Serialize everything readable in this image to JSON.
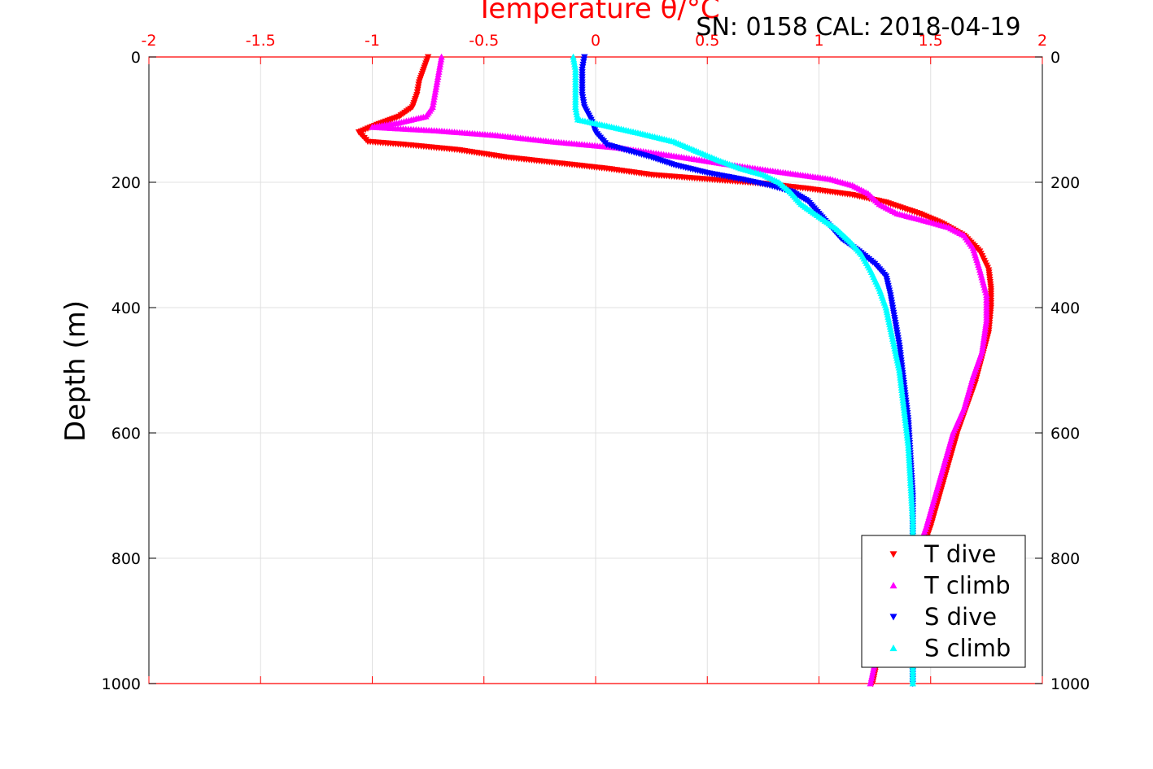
{
  "chart_data": {
    "type": "scatter",
    "title": "",
    "annotation": "SN: 0158  CAL: 2018-04-19",
    "xlabel_top": "Temperature θ/°C",
    "ylabel": "Depth (m)",
    "xlim": [
      -2,
      2
    ],
    "ylim": [
      0,
      1000
    ],
    "y_reversed": true,
    "x_ticks": [
      "-2",
      "-1.5",
      "-1",
      "-0.5",
      "0",
      "0.5",
      "1",
      "1.5",
      "2"
    ],
    "y_ticks": [
      "0",
      "200",
      "400",
      "600",
      "800",
      "1000"
    ],
    "grid": true,
    "legend_position": "bottom-right",
    "series": [
      {
        "name": "T dive",
        "color": "#ff0000",
        "marker": "triangle-down",
        "points": [
          [
            -0.75,
            0
          ],
          [
            -0.77,
            20
          ],
          [
            -0.79,
            40
          ],
          [
            -0.8,
            60
          ],
          [
            -0.82,
            80
          ],
          [
            -0.88,
            95
          ],
          [
            -0.98,
            108
          ],
          [
            -1.06,
            120
          ],
          [
            -1.02,
            135
          ],
          [
            -0.85,
            140
          ],
          [
            -0.62,
            148
          ],
          [
            -0.4,
            160
          ],
          [
            -0.15,
            170
          ],
          [
            0.05,
            178
          ],
          [
            0.25,
            188
          ],
          [
            0.5,
            195
          ],
          [
            0.75,
            202
          ],
          [
            0.95,
            210
          ],
          [
            1.15,
            220
          ],
          [
            1.3,
            232
          ],
          [
            1.45,
            250
          ],
          [
            1.55,
            265
          ],
          [
            1.65,
            285
          ],
          [
            1.72,
            310
          ],
          [
            1.76,
            340
          ],
          [
            1.77,
            370
          ],
          [
            1.77,
            400
          ],
          [
            1.76,
            440
          ],
          [
            1.73,
            480
          ],
          [
            1.7,
            520
          ],
          [
            1.66,
            560
          ],
          [
            1.62,
            600
          ],
          [
            1.58,
            650
          ],
          [
            1.54,
            700
          ],
          [
            1.5,
            750
          ],
          [
            1.45,
            800
          ],
          [
            1.38,
            850
          ],
          [
            1.32,
            900
          ],
          [
            1.27,
            950
          ],
          [
            1.24,
            1000
          ]
        ]
      },
      {
        "name": "T climb",
        "color": "#ff00ff",
        "marker": "triangle-up",
        "points": [
          [
            -0.69,
            0
          ],
          [
            -0.7,
            20
          ],
          [
            -0.71,
            40
          ],
          [
            -0.72,
            60
          ],
          [
            -0.73,
            80
          ],
          [
            -0.76,
            95
          ],
          [
            -0.88,
            105
          ],
          [
            -1.0,
            112
          ],
          [
            -0.7,
            118
          ],
          [
            -0.45,
            125
          ],
          [
            -0.2,
            135
          ],
          [
            0.1,
            145
          ],
          [
            0.35,
            158
          ],
          [
            0.6,
            172
          ],
          [
            0.85,
            185
          ],
          [
            1.05,
            195
          ],
          [
            1.15,
            205
          ],
          [
            1.22,
            218
          ],
          [
            1.27,
            235
          ],
          [
            1.35,
            250
          ],
          [
            1.48,
            262
          ],
          [
            1.58,
            272
          ],
          [
            1.65,
            285
          ],
          [
            1.69,
            305
          ],
          [
            1.72,
            340
          ],
          [
            1.75,
            380
          ],
          [
            1.75,
            420
          ],
          [
            1.73,
            470
          ],
          [
            1.69,
            510
          ],
          [
            1.65,
            560
          ],
          [
            1.6,
            600
          ],
          [
            1.56,
            650
          ],
          [
            1.52,
            700
          ],
          [
            1.48,
            750
          ],
          [
            1.43,
            800
          ],
          [
            1.37,
            850
          ],
          [
            1.31,
            900
          ],
          [
            1.26,
            950
          ],
          [
            1.23,
            1000
          ]
        ]
      },
      {
        "name": "S dive",
        "color": "#0000ff",
        "marker": "triangle-down",
        "points": [
          [
            -0.05,
            0
          ],
          [
            -0.06,
            20
          ],
          [
            -0.06,
            40
          ],
          [
            -0.06,
            60
          ],
          [
            -0.05,
            80
          ],
          [
            -0.02,
            100
          ],
          [
            0.0,
            120
          ],
          [
            0.05,
            140
          ],
          [
            0.15,
            150
          ],
          [
            0.25,
            160
          ],
          [
            0.35,
            172
          ],
          [
            0.5,
            185
          ],
          [
            0.65,
            195
          ],
          [
            0.78,
            205
          ],
          [
            0.88,
            215
          ],
          [
            0.95,
            230
          ],
          [
            1.0,
            250
          ],
          [
            1.05,
            270
          ],
          [
            1.1,
            290
          ],
          [
            1.18,
            310
          ],
          [
            1.25,
            330
          ],
          [
            1.3,
            350
          ],
          [
            1.32,
            380
          ],
          [
            1.34,
            420
          ],
          [
            1.36,
            460
          ],
          [
            1.38,
            520
          ],
          [
            1.4,
            580
          ],
          [
            1.41,
            640
          ],
          [
            1.42,
            700
          ],
          [
            1.42,
            760
          ],
          [
            1.42,
            820
          ],
          [
            1.42,
            880
          ],
          [
            1.42,
            940
          ],
          [
            1.42,
            1000
          ]
        ]
      },
      {
        "name": "S climb",
        "color": "#00ffff",
        "marker": "triangle-up",
        "points": [
          [
            -0.1,
            0
          ],
          [
            -0.09,
            20
          ],
          [
            -0.09,
            40
          ],
          [
            -0.09,
            60
          ],
          [
            -0.09,
            80
          ],
          [
            -0.08,
            100
          ],
          [
            0.05,
            110
          ],
          [
            0.2,
            122
          ],
          [
            0.35,
            135
          ],
          [
            0.45,
            150
          ],
          [
            0.55,
            165
          ],
          [
            0.65,
            178
          ],
          [
            0.75,
            188
          ],
          [
            0.82,
            200
          ],
          [
            0.87,
            215
          ],
          [
            0.92,
            235
          ],
          [
            1.0,
            255
          ],
          [
            1.08,
            275
          ],
          [
            1.14,
            295
          ],
          [
            1.19,
            315
          ],
          [
            1.23,
            340
          ],
          [
            1.27,
            370
          ],
          [
            1.3,
            400
          ],
          [
            1.33,
            450
          ],
          [
            1.36,
            500
          ],
          [
            1.38,
            560
          ],
          [
            1.4,
            620
          ],
          [
            1.41,
            680
          ],
          [
            1.42,
            740
          ],
          [
            1.42,
            800
          ],
          [
            1.42,
            860
          ],
          [
            1.42,
            920
          ],
          [
            1.42,
            1000
          ]
        ]
      }
    ]
  }
}
